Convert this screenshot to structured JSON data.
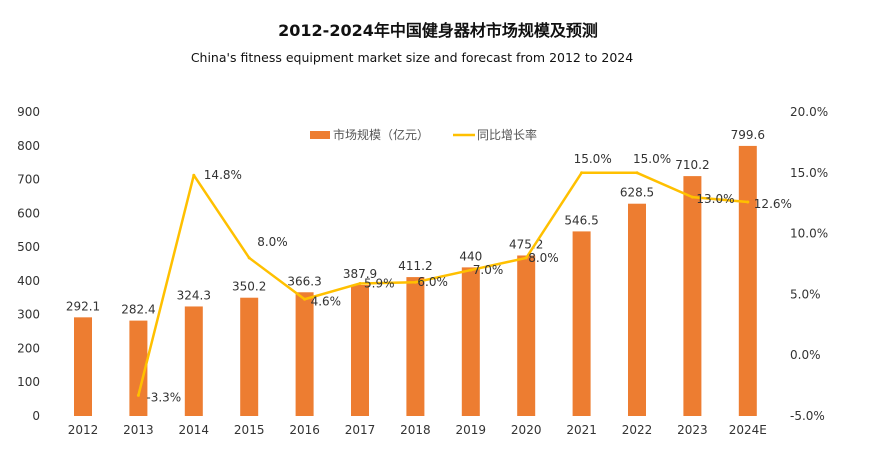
{
  "chart_data": {
    "type": "bar+line",
    "title": "2012-2024年中国健身器材市场规模及预测",
    "subtitle": "China's fitness equipment market size and forecast from 2012 to 2024",
    "categories": [
      "2012",
      "2013",
      "2014",
      "2015",
      "2016",
      "2017",
      "2018",
      "2019",
      "2020",
      "2021",
      "2022",
      "2023",
      "2024E"
    ],
    "series": [
      {
        "name": "市场规模（亿元）",
        "type": "bar",
        "axis": "left",
        "color": "#ED7D31",
        "values": [
          292.1,
          282.4,
          324.3,
          350.2,
          366.3,
          387.9,
          411.2,
          440,
          475.2,
          546.5,
          628.5,
          710.2,
          799.6
        ],
        "labels": [
          "292.1",
          "282.4",
          "324.3",
          "350.2",
          "366.3",
          "387.9",
          "411.2",
          "440",
          "475.2",
          "546.5",
          "628.5",
          "710.2",
          "799.6"
        ]
      },
      {
        "name": "同比增长率",
        "type": "line",
        "axis": "right",
        "color": "#FFC000",
        "values": [
          null,
          -3.3,
          14.8,
          8.0,
          4.6,
          5.9,
          6.0,
          7.0,
          8.0,
          15.0,
          15.0,
          13.0,
          12.6
        ],
        "labels": [
          "",
          "-3.3%",
          "14.8%",
          "8.0%",
          "4.6%",
          "5.9%",
          "6.0%",
          "7.0%",
          "8.0%",
          "15.0%",
          "15.0%",
          "13.0%",
          "12.6%"
        ]
      }
    ],
    "left_axis": {
      "ylim": [
        0,
        900
      ],
      "ticks": [
        "0",
        "100",
        "200",
        "300",
        "400",
        "500",
        "600",
        "700",
        "800",
        "900"
      ]
    },
    "right_axis": {
      "ylim": [
        -5,
        20
      ],
      "ticks": [
        "-5.0%",
        "0.0%",
        "5.0%",
        "10.0%",
        "15.0%",
        "20.0%"
      ]
    },
    "grid": false,
    "legend": "top-center"
  }
}
